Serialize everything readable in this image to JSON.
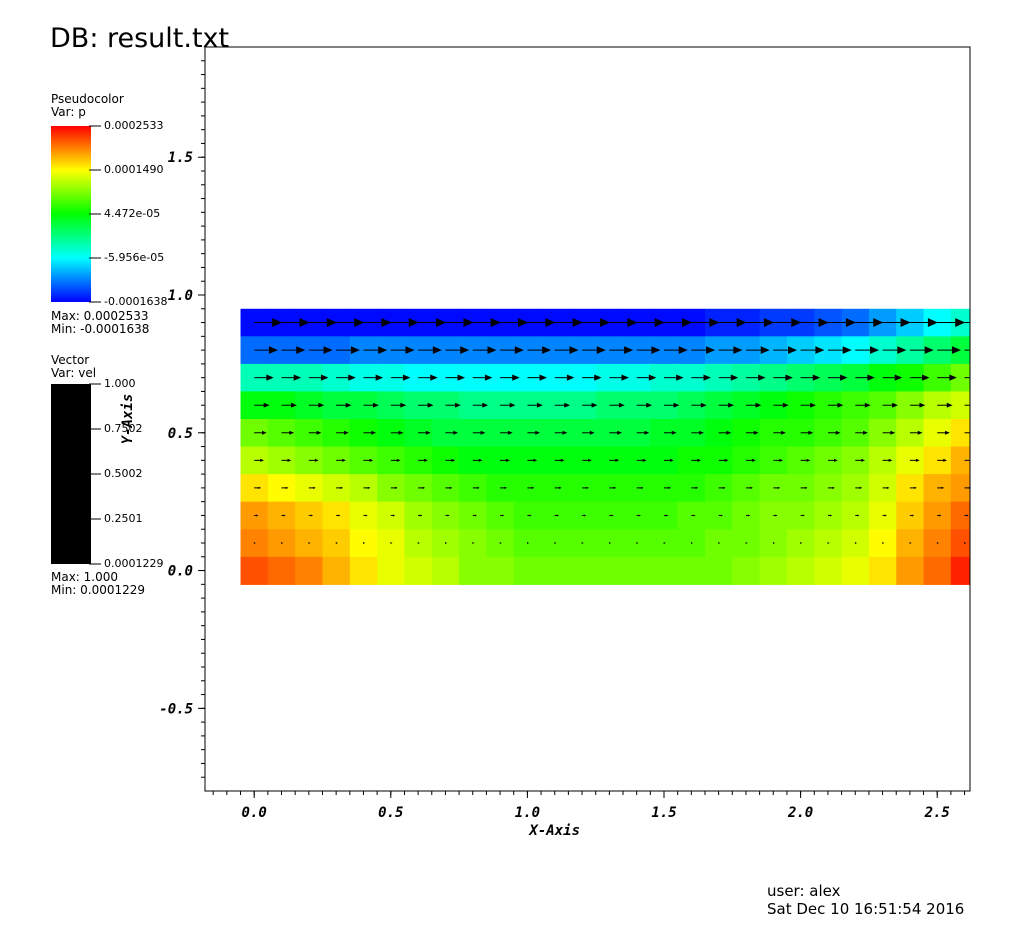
{
  "window": {
    "db_title": "DB: result.txt"
  },
  "pseudocolor_legend": {
    "title": "Pseudocolor",
    "var": "Var: p",
    "ticks": [
      "0.0002533",
      "0.0001490",
      "4.472e-05",
      "-5.956e-05",
      "-0.0001638"
    ],
    "max_label": "Max:  0.0002533",
    "min_label": "Min: -0.0001638",
    "colors": [
      "#ff0000",
      "#ffff00",
      "#00ff00",
      "#00ffff",
      "#0000ff"
    ]
  },
  "vector_legend": {
    "title": "Vector",
    "var": "Var: vel",
    "ticks": [
      "1.000",
      "0.7502",
      "0.5002",
      "0.2501",
      "0.0001229"
    ],
    "max_label": "Max:  1.000",
    "min_label": "Min:  0.0001229",
    "color": "#000000"
  },
  "footer": {
    "user": "user: alex",
    "date": "Sat Dec 10 16:51:54 2016"
  },
  "chart_data": {
    "type": "heatmap",
    "title": "",
    "xlabel": "X-Axis",
    "ylabel": "Y-Axis",
    "xlim": [
      -0.18,
      2.62
    ],
    "ylim": [
      -0.8,
      1.9
    ],
    "xticks": [
      0.0,
      0.5,
      1.0,
      1.5,
      2.0,
      2.5
    ],
    "xtick_labels": [
      "0.0",
      "0.5",
      "1.0",
      "1.5",
      "2.0",
      "2.5"
    ],
    "yticks": [
      -0.5,
      0.0,
      0.5,
      1.0,
      1.5
    ],
    "ytick_labels": [
      "-0.5",
      "0.0",
      "0.5",
      "1.0",
      "1.5"
    ],
    "grid": false,
    "field_variable": "p",
    "vector_variable": "vel",
    "colormap_range": [
      -0.0001638,
      0.0002533
    ],
    "cell_size": 0.1,
    "x_centers": [
      0.0,
      0.1,
      0.2,
      0.3,
      0.4,
      0.5,
      0.6,
      0.7,
      0.8,
      0.9,
      1.0,
      1.1,
      1.2,
      1.3,
      1.4,
      1.5,
      1.6,
      1.7,
      1.8,
      1.9,
      2.0,
      2.1,
      2.2,
      2.3,
      2.4,
      2.5,
      2.6
    ],
    "y_centers": [
      0.9,
      0.8,
      0.7,
      0.6,
      0.5,
      0.4,
      0.3,
      0.2,
      0.1,
      0.0
    ],
    "values": [
      [
        -0.00016,
        -0.00016,
        -0.00016,
        -0.00016,
        -0.00016,
        -0.00016,
        -0.00016,
        -0.00016,
        -0.00016,
        -0.00016,
        -0.00016,
        -0.00016,
        -0.00016,
        -0.00016,
        -0.00016,
        -0.00016,
        -0.00016,
        -0.00015,
        -0.00015,
        -0.00014,
        -0.00014,
        -0.00013,
        -0.00012,
        -0.0001,
        -8e-05,
        -6e-05,
        -4e-05
      ],
      [
        -0.00012,
        -0.00012,
        -0.00012,
        -0.00012,
        -0.00011,
        -0.00011,
        -0.00011,
        -0.00011,
        -0.00011,
        -0.00011,
        -0.00011,
        -0.00011,
        -0.00011,
        -0.00011,
        -0.00011,
        -0.00011,
        -0.00011,
        -0.0001,
        -0.0001,
        -9e-05,
        -8e-05,
        -7e-05,
        -6e-05,
        -4e-05,
        -2e-05,
        0.0,
        2e-05
      ],
      [
        -3e-05,
        -3e-05,
        -3e-05,
        -4e-05,
        -5e-05,
        -5e-05,
        -6e-05,
        -6e-05,
        -6e-05,
        -6e-05,
        -6e-05,
        -6e-05,
        -6e-05,
        -5e-05,
        -5e-05,
        -4e-05,
        -4e-05,
        -3e-05,
        -2e-05,
        -1e-05,
        0.0,
        1e-05,
        2e-05,
        4e-05,
        5e-05,
        7e-05,
        9e-05
      ],
      [
        4e-05,
        4e-05,
        3e-05,
        2e-05,
        2e-05,
        1e-05,
        0.0,
        0.0,
        -1e-05,
        -1e-05,
        -1e-05,
        -1e-05,
        -1e-05,
        0.0,
        0.0,
        0.0,
        1e-05,
        2e-05,
        3e-05,
        4e-05,
        5e-05,
        6e-05,
        7e-05,
        8e-05,
        0.0001,
        0.00012,
        0.00013
      ],
      [
        9e-05,
        8e-05,
        7e-05,
        6e-05,
        5e-05,
        4e-05,
        3e-05,
        2e-05,
        2e-05,
        2e-05,
        2e-05,
        2e-05,
        2e-05,
        2e-05,
        2e-05,
        3e-05,
        3e-05,
        4e-05,
        5e-05,
        6e-05,
        6e-05,
        7e-05,
        8e-05,
        0.0001,
        0.00012,
        0.00014,
        0.00016
      ],
      [
        0.00012,
        0.00011,
        0.0001,
        9e-05,
        8e-05,
        7e-05,
        6e-05,
        5e-05,
        4e-05,
        4e-05,
        4e-05,
        4e-05,
        4e-05,
        4e-05,
        4e-05,
        4e-05,
        5e-05,
        5e-05,
        6e-05,
        7e-05,
        8e-05,
        9e-05,
        0.0001,
        0.00012,
        0.00014,
        0.00016,
        0.00018
      ],
      [
        0.00016,
        0.00015,
        0.00014,
        0.00013,
        0.00012,
        0.0001,
        9e-05,
        8e-05,
        7e-05,
        6e-05,
        6e-05,
        6e-05,
        6e-05,
        6e-05,
        6e-05,
        6e-05,
        6e-05,
        7e-05,
        8e-05,
        9e-05,
        9e-05,
        0.0001,
        0.00011,
        0.00013,
        0.00016,
        0.00018,
        0.00019
      ],
      [
        0.00019,
        0.00018,
        0.00017,
        0.00016,
        0.00014,
        0.00013,
        0.00011,
        0.0001,
        9e-05,
        8e-05,
        7e-05,
        7e-05,
        7e-05,
        7e-05,
        7e-05,
        7e-05,
        8e-05,
        8e-05,
        9e-05,
        0.0001,
        0.0001,
        0.00011,
        0.00012,
        0.00014,
        0.00017,
        0.00019,
        0.00021
      ],
      [
        0.0002,
        0.00019,
        0.00018,
        0.00017,
        0.00015,
        0.00014,
        0.00012,
        0.00011,
        0.0001,
        9e-05,
        8e-05,
        8e-05,
        8e-05,
        8e-05,
        8e-05,
        8e-05,
        8e-05,
        9e-05,
        9e-05,
        0.0001,
        0.00011,
        0.00012,
        0.00013,
        0.00015,
        0.00018,
        0.0002,
        0.00022
      ],
      [
        0.00022,
        0.00021,
        0.0002,
        0.00018,
        0.00016,
        0.00014,
        0.00013,
        0.00012,
        0.0001,
        0.0001,
        9e-05,
        9e-05,
        9e-05,
        9e-05,
        9e-05,
        9e-05,
        9e-05,
        9e-05,
        0.0001,
        0.00011,
        0.00012,
        0.00013,
        0.00014,
        0.00016,
        0.00019,
        0.00021,
        0.00024
      ]
    ],
    "vectors": {
      "x_step": 0.1,
      "x_start": 0.0,
      "x_end": 2.6,
      "rows": [
        {
          "y": 0.9,
          "u": 1.0
        },
        {
          "y": 0.8,
          "u": 0.85
        },
        {
          "y": 0.7,
          "u": 0.7
        },
        {
          "y": 0.6,
          "u": 0.55
        },
        {
          "y": 0.5,
          "u": 0.45
        },
        {
          "y": 0.4,
          "u": 0.35
        },
        {
          "y": 0.3,
          "u": 0.25
        },
        {
          "y": 0.2,
          "u": 0.15
        },
        {
          "y": 0.1,
          "u": 0.06
        }
      ]
    }
  }
}
